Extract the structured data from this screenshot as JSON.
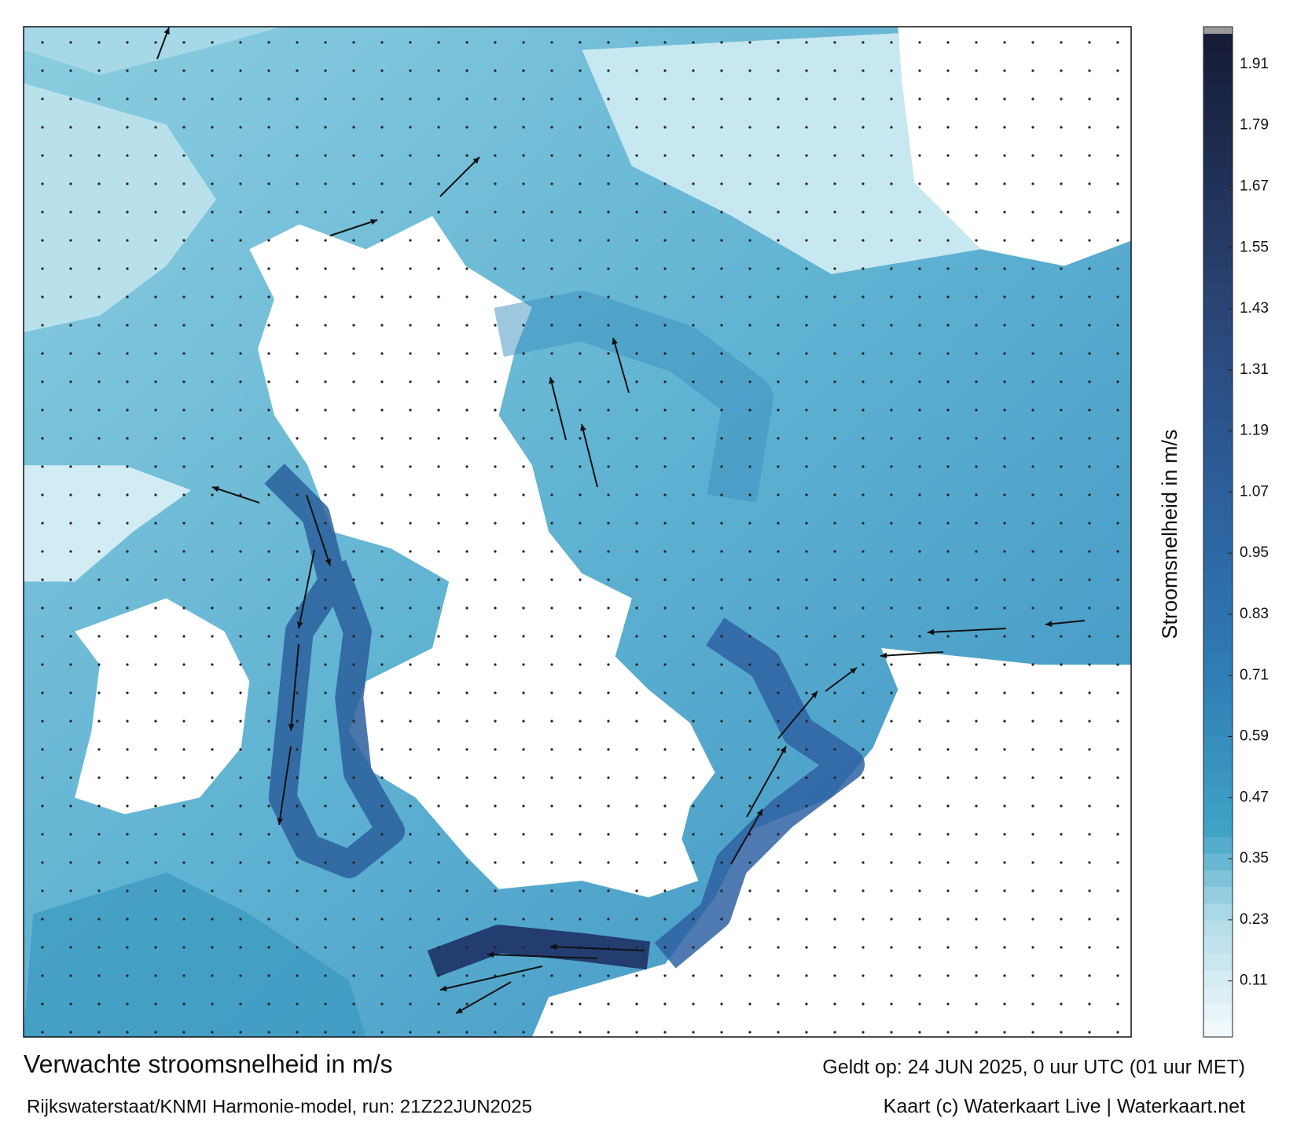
{
  "chart_data": {
    "type": "colorbar-map",
    "title": "Verwachte stroomsnelheid in m/s",
    "subtitle": "Rijkswaterstaat/KNMI Harmonie-model, run: 21Z22JUN2025",
    "valid_time": "Geldt op: 24 JUN 2025, 0 uur UTC (01 uur MET)",
    "credit": "Kaart (c) Waterkaart Live | Waterkaart.net",
    "colorbar_label": "Stroomsnelheid in m/s",
    "clim": [
      0,
      1.97
    ],
    "cticks": [
      0.11,
      0.23,
      0.35,
      0.47,
      0.59,
      0.71,
      0.83,
      0.95,
      1.07,
      1.19,
      1.31,
      1.43,
      1.55,
      1.67,
      1.79,
      1.91
    ],
    "color_stops": [
      [
        0,
        "#f5fafc"
      ],
      [
        0.23,
        "#b4dde9"
      ],
      [
        0.41,
        "#3fa3c6"
      ],
      [
        0.71,
        "#2f7db5"
      ],
      [
        1.07,
        "#2c5f9c"
      ],
      [
        1.43,
        "#2a4576"
      ],
      [
        1.97,
        "#161b35"
      ]
    ]
  }
}
